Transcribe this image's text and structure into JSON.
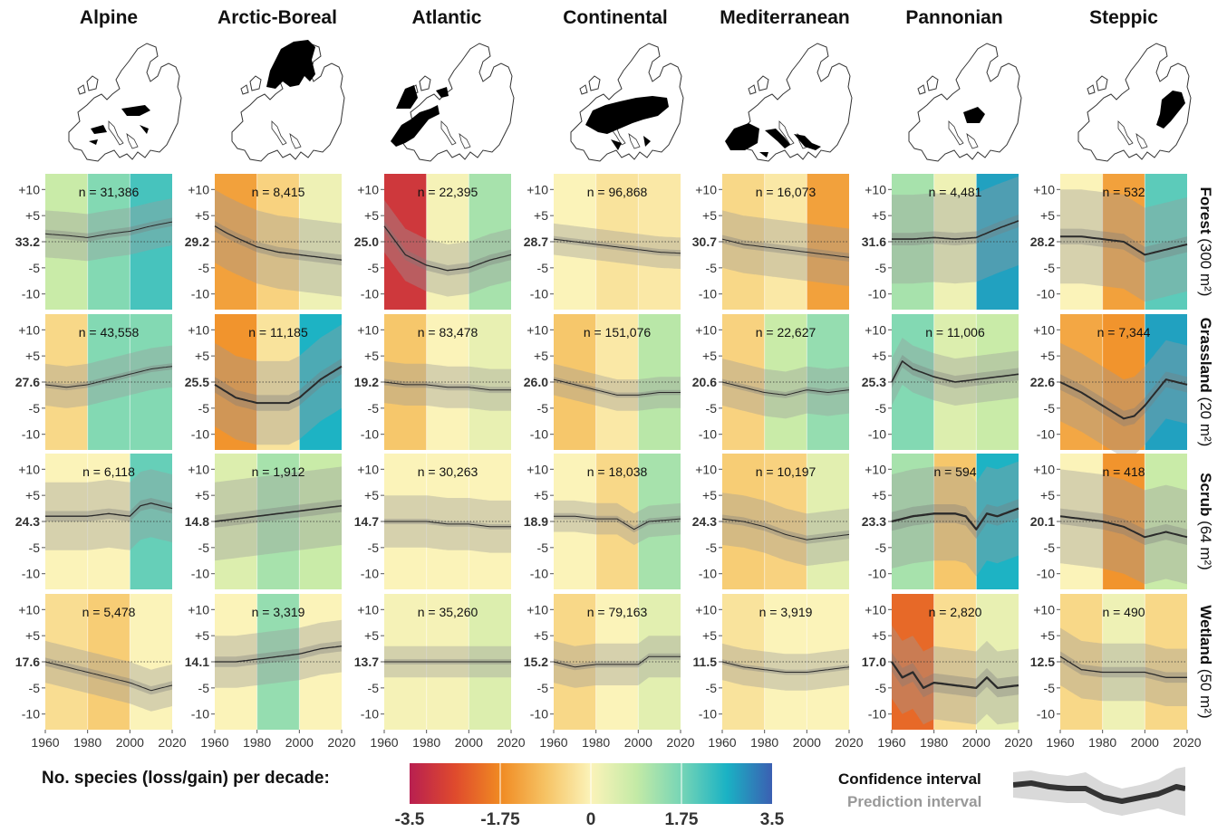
{
  "chart_data": {
    "type": "line",
    "xlim": [
      1960,
      2020
    ],
    "ylim": [
      -13,
      13
    ],
    "x_ticks": [
      1960,
      1980,
      2000,
      2020
    ],
    "y_ticks": [
      "+10",
      "+5",
      "-5",
      "-10"
    ],
    "y_tick_values": [
      10,
      5,
      -5,
      -10
    ],
    "regions": [
      "Alpine",
      "Arctic-Boreal",
      "Atlantic",
      "Continental",
      "Mediterranean",
      "Pannonian",
      "Steppic"
    ],
    "habitats": [
      {
        "name": "Forest",
        "area": " (300 m²)"
      },
      {
        "name": "Grassland",
        "area": " (20 m²)"
      },
      {
        "name": "Scrub",
        "area": " (64 m²)"
      },
      {
        "name": "Wetland",
        "area": " (50 m²)"
      }
    ],
    "panels": [
      [
        {
          "n": "n = 31,386",
          "base": "33.2",
          "shade": [
            0.8,
            1.6,
            2.2
          ],
          "x": [
            1960,
            1970,
            1980,
            1990,
            2000,
            2010,
            2020
          ],
          "y": [
            1.5,
            1.2,
            0.8,
            1.5,
            2.0,
            3.0,
            3.8
          ],
          "ci": 0.8,
          "pi": 4.5
        },
        {
          "n": "n = 8,415",
          "base": "29.2",
          "shade": [
            -1.4,
            -0.6,
            0.2
          ],
          "x": [
            1960,
            1965,
            1970,
            1980,
            1990,
            2000,
            2010,
            2020
          ],
          "y": [
            3.0,
            1.8,
            0.8,
            -1.0,
            -2.0,
            -2.5,
            -3.0,
            -3.5
          ],
          "ci": 1.0,
          "pi": 7.0
        },
        {
          "n": "n = 22,395",
          "base": "25.0",
          "shade": [
            -3.0,
            0.1,
            1.2
          ],
          "x": [
            1960,
            1970,
            1980,
            1990,
            2000,
            2010,
            2020
          ],
          "y": [
            3.0,
            -2.5,
            -4.5,
            -5.5,
            -5.0,
            -3.5,
            -2.5
          ],
          "ci": 1.0,
          "pi": 5.0
        },
        {
          "n": "n = 96,868",
          "base": "28.7",
          "shade": [
            0.0,
            -0.3,
            -0.2
          ],
          "x": [
            1960,
            1970,
            1980,
            1990,
            2000,
            2010,
            2020
          ],
          "y": [
            0.5,
            0.0,
            -0.5,
            -1.0,
            -1.5,
            -2.0,
            -2.2
          ],
          "ci": 0.6,
          "pi": 3.0
        },
        {
          "n": "n = 16,073",
          "base": "30.7",
          "shade": [
            -0.5,
            -0.2,
            -1.4
          ],
          "x": [
            1960,
            1970,
            1980,
            1990,
            2000,
            2010,
            2020
          ],
          "y": [
            0.5,
            -0.5,
            -1.0,
            -1.5,
            -2.0,
            -2.5,
            -3.0
          ],
          "ci": 0.8,
          "pi": 5.5
        },
        {
          "n": "n = 4,481",
          "base": "31.6",
          "shade": [
            1.2,
            0.2,
            2.8
          ],
          "x": [
            1960,
            1970,
            1980,
            1990,
            2000,
            2010,
            2020
          ],
          "y": [
            0.5,
            0.5,
            0.8,
            0.5,
            0.8,
            2.5,
            4.0
          ],
          "ci": 1.2,
          "pi": 8.5
        },
        {
          "n": "n = 532",
          "base": "28.2",
          "shade": [
            0.0,
            -1.4,
            2.0
          ],
          "x": [
            1960,
            1970,
            1980,
            1990,
            2000,
            2010,
            2020
          ],
          "y": [
            1.0,
            1.0,
            0.5,
            0.0,
            -2.5,
            -1.5,
            -0.5
          ],
          "ci": 1.5,
          "pi": 9.0
        }
      ],
      [
        {
          "n": "n = 43,558",
          "base": "27.6",
          "shade": [
            -0.5,
            1.6,
            1.6
          ],
          "x": [
            1960,
            1970,
            1980,
            1990,
            2000,
            2010,
            2020
          ],
          "y": [
            -0.5,
            -1.0,
            -0.5,
            0.5,
            1.5,
            2.5,
            3.0
          ],
          "ci": 0.6,
          "pi": 4.0
        },
        {
          "n": "n = 11,185",
          "base": "25.5",
          "shade": [
            -1.6,
            -0.3,
            2.6
          ],
          "x": [
            1960,
            1970,
            1980,
            1990,
            1995,
            2000,
            2010,
            2020
          ],
          "y": [
            -0.5,
            -3.0,
            -4.0,
            -4.0,
            -4.0,
            -3.0,
            0.5,
            3.0
          ],
          "ci": 1.5,
          "pi": 8.0
        },
        {
          "n": "n = 83,478",
          "base": "19.2",
          "shade": [
            -0.8,
            0.0,
            0.3
          ],
          "x": [
            1960,
            1970,
            1980,
            1990,
            2000,
            2010,
            2020
          ],
          "y": [
            0.0,
            -0.5,
            -0.5,
            -1.0,
            -1.0,
            -1.5,
            -1.5
          ],
          "ci": 0.6,
          "pi": 4.0
        },
        {
          "n": "n = 151,076",
          "base": "26.0",
          "shade": [
            -0.8,
            -0.2,
            1.0
          ],
          "x": [
            1960,
            1970,
            1980,
            1990,
            2000,
            2010,
            2020
          ],
          "y": [
            0.5,
            -0.5,
            -1.5,
            -2.5,
            -2.5,
            -2.0,
            -2.0
          ],
          "ci": 0.5,
          "pi": 3.0
        },
        {
          "n": "n = 22,627",
          "base": "20.6",
          "shade": [
            -0.6,
            0.8,
            1.4
          ],
          "x": [
            1960,
            1970,
            1980,
            1990,
            2000,
            2010,
            2020
          ],
          "y": [
            0.0,
            -1.0,
            -2.0,
            -2.5,
            -1.5,
            -2.0,
            -1.5
          ],
          "ci": 0.6,
          "pi": 4.5
        },
        {
          "n": "n = 11,006",
          "base": "25.3",
          "shade": [
            1.6,
            0.5,
            0.8
          ],
          "x": [
            1960,
            1965,
            1970,
            1980,
            1990,
            2000,
            2010,
            2020
          ],
          "y": [
            0.0,
            4.0,
            2.5,
            1.0,
            0.0,
            0.5,
            1.0,
            1.5
          ],
          "ci": 1.2,
          "pi": 4.5
        },
        {
          "n": "n = 7,344",
          "base": "22.6",
          "shade": [
            -1.3,
            -1.6,
            2.8
          ],
          "x": [
            1960,
            1970,
            1980,
            1990,
            1995,
            2000,
            2010,
            2020
          ],
          "y": [
            0.0,
            -2.0,
            -4.5,
            -7.0,
            -6.5,
            -4.5,
            0.5,
            -0.5
          ],
          "ci": 1.5,
          "pi": 7.5
        }
      ],
      [
        {
          "n": "n = 6,118",
          "base": "24.3",
          "shade": [
            0.0,
            0.0,
            1.9
          ],
          "x": [
            1960,
            1970,
            1980,
            1990,
            2000,
            2005,
            2010,
            2020
          ],
          "y": [
            1.0,
            1.0,
            1.0,
            1.5,
            1.0,
            3.0,
            3.5,
            2.5
          ],
          "ci": 1.0,
          "pi": 6.5
        },
        {
          "n": "n = 1,912",
          "base": "14.8",
          "shade": [
            0.5,
            1.2,
            0.8
          ],
          "x": [
            1960,
            1970,
            1980,
            1990,
            2000,
            2010,
            2020
          ],
          "y": [
            0.0,
            0.5,
            1.0,
            1.5,
            2.0,
            2.5,
            3.0
          ],
          "ci": 1.2,
          "pi": 7.5
        },
        {
          "n": "n = 30,263",
          "base": "14.7",
          "shade": [
            0.0,
            0.0,
            0.0
          ],
          "x": [
            1960,
            1970,
            1980,
            1990,
            2000,
            2010,
            2020
          ],
          "y": [
            0.0,
            0.0,
            0.0,
            -0.5,
            -0.5,
            -1.0,
            -1.0
          ],
          "ci": 0.5,
          "pi": 5.0
        },
        {
          "n": "n = 18,038",
          "base": "18.9",
          "shade": [
            0.0,
            -0.5,
            1.2
          ],
          "x": [
            1960,
            1970,
            1980,
            1990,
            1998,
            2005,
            2020
          ],
          "y": [
            1.0,
            1.0,
            0.5,
            0.5,
            -1.5,
            0.0,
            0.5
          ],
          "ci": 0.6,
          "pi": 3.0
        },
        {
          "n": "n = 10,197",
          "base": "24.3",
          "shade": [
            -0.7,
            -0.6,
            0.4
          ],
          "x": [
            1960,
            1970,
            1980,
            1990,
            2000,
            2010,
            2020
          ],
          "y": [
            0.5,
            0.0,
            -1.0,
            -2.5,
            -3.5,
            -3.0,
            -2.5
          ],
          "ci": 0.8,
          "pi": 5.0
        },
        {
          "n": "n = 594",
          "base": "23.3",
          "shade": [
            1.2,
            -0.8,
            2.6
          ],
          "x": [
            1960,
            1970,
            1980,
            1990,
            1995,
            2000,
            2005,
            2010,
            2020
          ],
          "y": [
            0.0,
            1.0,
            1.5,
            1.5,
            1.0,
            -1.5,
            1.5,
            1.0,
            2.5
          ],
          "ci": 1.8,
          "pi": 9.0
        },
        {
          "n": "n = 418",
          "base": "20.1",
          "shade": [
            0.0,
            -1.6,
            0.8
          ],
          "x": [
            1960,
            1970,
            1980,
            1990,
            2000,
            2010,
            2020
          ],
          "y": [
            1.0,
            0.5,
            0.0,
            -1.0,
            -3.0,
            -2.0,
            -3.0
          ],
          "ci": 1.5,
          "pi": 9.0
        }
      ],
      [
        {
          "n": "n = 5,478",
          "base": "17.6",
          "shade": [
            -0.4,
            -0.7,
            0.0
          ],
          "x": [
            1960,
            1970,
            1980,
            1990,
            2000,
            2010,
            2020
          ],
          "y": [
            0.0,
            -1.0,
            -2.0,
            -3.0,
            -4.0,
            -5.5,
            -4.5
          ],
          "ci": 0.8,
          "pi": 4.0
        },
        {
          "n": "n = 3,319",
          "base": "14.1",
          "shade": [
            0.0,
            1.4,
            0.0
          ],
          "x": [
            1960,
            1970,
            1980,
            1990,
            2000,
            2010,
            2020
          ],
          "y": [
            0.0,
            0.0,
            0.5,
            1.0,
            1.5,
            2.5,
            3.0
          ],
          "ci": 1.0,
          "pi": 5.0
        },
        {
          "n": "n = 35,260",
          "base": "13.7",
          "shade": [
            0.1,
            0.1,
            0.5
          ],
          "x": [
            1960,
            1970,
            1980,
            1990,
            2000,
            2010,
            2020
          ],
          "y": [
            0.0,
            0.0,
            0.0,
            0.0,
            0.0,
            0.0,
            0.0
          ],
          "ci": 0.5,
          "pi": 3.0
        },
        {
          "n": "n = 79,163",
          "base": "15.2",
          "shade": [
            -0.5,
            0.0,
            0.4
          ],
          "x": [
            1960,
            1970,
            1980,
            1990,
            2000,
            2005,
            2020
          ],
          "y": [
            0.0,
            -1.0,
            -0.5,
            -0.5,
            -0.5,
            1.0,
            1.0
          ],
          "ci": 0.6,
          "pi": 4.0
        },
        {
          "n": "n = 3,919",
          "base": "11.5",
          "shade": [
            -0.3,
            0.0,
            0.0
          ],
          "x": [
            1960,
            1970,
            1980,
            1990,
            2000,
            2010,
            2020
          ],
          "y": [
            0.0,
            -1.0,
            -1.5,
            -2.0,
            -2.0,
            -1.5,
            -1.0
          ],
          "ci": 0.5,
          "pi": 3.5
        },
        {
          "n": "n = 2,820",
          "base": "17.0",
          "shade": [
            -2.2,
            -0.4,
            0.3
          ],
          "x": [
            1960,
            1965,
            1970,
            1975,
            1980,
            1990,
            2000,
            2005,
            2010,
            2020
          ],
          "y": [
            0.0,
            -3.0,
            -2.0,
            -5.0,
            -4.0,
            -4.5,
            -5.0,
            -3.0,
            -5.0,
            -4.5
          ],
          "ci": 1.8,
          "pi": 7.0
        },
        {
          "n": "n = 490",
          "base": "12.5",
          "shade": [
            -0.5,
            0.2,
            -0.5
          ],
          "x": [
            1960,
            1970,
            1980,
            1990,
            2000,
            2010,
            2020
          ],
          "y": [
            1.0,
            -1.5,
            -2.0,
            -2.0,
            -2.0,
            -3.0,
            -3.0
          ],
          "ci": 1.0,
          "pi": 5.5
        }
      ]
    ],
    "colorbar": {
      "title": "No. species (loss/gain) per decade:",
      "min": -3.5,
      "max": 3.5,
      "ticks": [
        "-3.5",
        "-1.75",
        "0",
        "1.75",
        "3.5"
      ],
      "colors": [
        "#b81f50",
        "#df4a2d",
        "#f08a22",
        "#f6c364",
        "#fbf3b9",
        "#c4eaa6",
        "#76d5b6",
        "#1ab2c4",
        "#3b5fb2"
      ]
    },
    "legend": {
      "confidence": "Confidence interval",
      "prediction": "Prediction interval"
    }
  }
}
